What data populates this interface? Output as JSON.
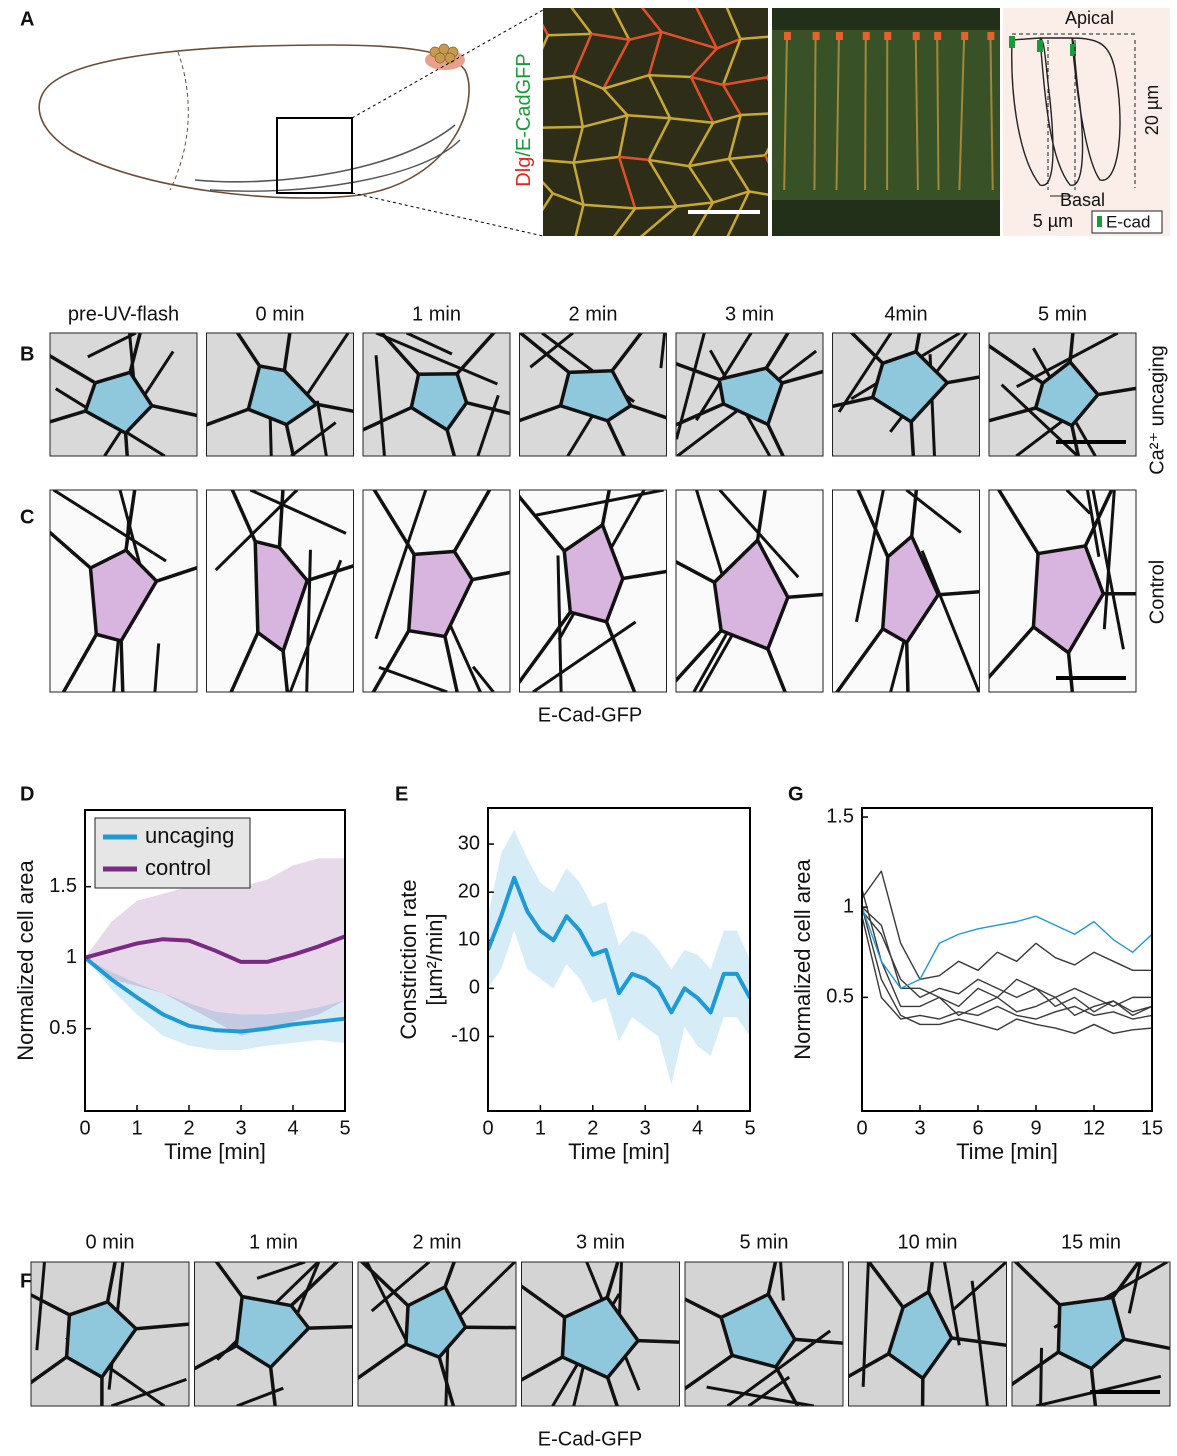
{
  "panel_labels": [
    "A",
    "B",
    "C",
    "D",
    "E",
    "G",
    "F"
  ],
  "panel_a": {
    "stain_red": "Dlg",
    "stain_green": "/E-CadGFP",
    "apical": "Apical",
    "basal": "Basal",
    "height": "20 µm",
    "width": "5 µm",
    "legend": "E-cad"
  },
  "panel_bc": {
    "times": [
      "pre-UV-flash",
      "0 min",
      "1 min",
      "2 min",
      "3 min",
      "4min",
      "5 min"
    ],
    "row_b_label": "Ca²⁺ uncaging",
    "row_c_label": "Control",
    "caption": "E-Cad-GFP"
  },
  "panel_f": {
    "times": [
      "0 min",
      "1 min",
      "2 min",
      "3 min",
      "5 min",
      "10 min",
      "15 min"
    ],
    "caption": "E-Cad-GFP"
  },
  "chart_data": [
    {
      "type": "line",
      "xlabel": "Time [min]",
      "ylabel": "Normalized cell area",
      "x": [
        0,
        0.5,
        1,
        1.5,
        2,
        2.5,
        3,
        3.5,
        4,
        4.5,
        5
      ],
      "xlim": [
        0,
        5
      ],
      "xticks": [
        0,
        1,
        2,
        3,
        4,
        5
      ],
      "ylim": [
        -0.08,
        2.04
      ],
      "yticks": [
        0.5,
        1,
        1.5
      ],
      "legend": "upper left",
      "series": [
        {
          "name": "uncaging",
          "color": "#1e9ad6",
          "values": [
            1,
            0.85,
            0.72,
            0.6,
            0.52,
            0.49,
            0.48,
            0.5,
            0.53,
            0.55,
            0.57
          ],
          "upper": [
            1,
            0.9,
            0.82,
            0.75,
            0.68,
            0.62,
            0.6,
            0.6,
            0.62,
            0.65,
            0.7
          ],
          "lower": [
            1,
            0.78,
            0.6,
            0.45,
            0.38,
            0.35,
            0.35,
            0.38,
            0.4,
            0.42,
            0.4
          ]
        },
        {
          "name": "control",
          "color": "#7b2a83",
          "values": [
            1,
            1.05,
            1.1,
            1.13,
            1.12,
            1.05,
            0.97,
            0.97,
            1.02,
            1.08,
            1.15
          ],
          "upper": [
            1,
            1.25,
            1.4,
            1.45,
            1.5,
            1.55,
            1.5,
            1.55,
            1.65,
            1.7,
            1.7
          ],
          "lower": [
            1,
            0.85,
            0.8,
            0.75,
            0.65,
            0.55,
            0.45,
            0.5,
            0.55,
            0.6,
            0.7
          ]
        }
      ]
    },
    {
      "type": "line",
      "xlabel": "Time [min]",
      "ylabel": "Constriction rate",
      "ylabel_unit": "[µm²/min]",
      "x": [
        0,
        0.25,
        0.5,
        0.75,
        1,
        1.25,
        1.5,
        1.75,
        2,
        2.25,
        2.5,
        2.75,
        3,
        3.25,
        3.5,
        3.75,
        4,
        4.25,
        4.5,
        4.75,
        5
      ],
      "xlim": [
        0,
        5
      ],
      "xticks": [
        0,
        1,
        2,
        3,
        4,
        5
      ],
      "ylim": [
        -25.5,
        37.5
      ],
      "yticks": [
        -10,
        0,
        10,
        20,
        30
      ],
      "series": [
        {
          "color": "#1e9ad6",
          "values": [
            8,
            15,
            23,
            16,
            12,
            10,
            15,
            12,
            7,
            8,
            -1,
            3,
            2,
            0,
            -5,
            0,
            -2,
            -5,
            3,
            3,
            -2
          ],
          "upper": [
            15,
            28,
            33,
            27,
            22,
            20,
            25,
            22,
            17,
            18,
            9,
            12,
            11,
            8,
            4,
            8,
            7,
            4,
            12,
            12,
            6
          ],
          "lower": [
            0,
            4,
            12,
            4,
            2,
            0,
            5,
            2,
            -3,
            -2,
            -11,
            -6,
            -8,
            -10,
            -20,
            -8,
            -12,
            -14,
            -6,
            -6,
            -10
          ]
        }
      ]
    },
    {
      "type": "line",
      "xlabel": "Time [min]",
      "ylabel": "Normalized cell area",
      "x": [
        0,
        1,
        2,
        3,
        4,
        5,
        6,
        7,
        8,
        9,
        10,
        11,
        12,
        13,
        14,
        15
      ],
      "xlim": [
        0,
        15
      ],
      "xticks": [
        0,
        3,
        6,
        9,
        12,
        15
      ],
      "ylim": [
        -0.13,
        1.55
      ],
      "yticks": [
        0.5,
        1,
        1.5
      ],
      "series": [
        {
          "color": "#3a3a3a",
          "values": [
            1.05,
            1.2,
            0.8,
            0.6,
            0.62,
            0.7,
            0.65,
            0.75,
            0.7,
            0.8,
            0.72,
            0.68,
            0.75,
            0.7,
            0.65,
            0.65
          ]
        },
        {
          "color": "#3a3a3a",
          "values": [
            1,
            0.9,
            0.55,
            0.55,
            0.5,
            0.45,
            0.55,
            0.5,
            0.6,
            0.55,
            0.5,
            0.55,
            0.5,
            0.45,
            0.5,
            0.5
          ]
        },
        {
          "color": "#3a3a3a",
          "values": [
            1.1,
            0.7,
            0.45,
            0.45,
            0.5,
            0.4,
            0.45,
            0.5,
            0.42,
            0.45,
            0.5,
            0.4,
            0.45,
            0.48,
            0.42,
            0.45
          ]
        },
        {
          "color": "#3a3a3a",
          "values": [
            0.95,
            0.5,
            0.38,
            0.4,
            0.38,
            0.42,
            0.4,
            0.45,
            0.4,
            0.38,
            0.42,
            0.45,
            0.4,
            0.42,
            0.38,
            0.4
          ]
        },
        {
          "color": "#3a3a3a",
          "values": [
            1,
            0.6,
            0.4,
            0.35,
            0.35,
            0.38,
            0.35,
            0.32,
            0.38,
            0.35,
            0.33,
            0.3,
            0.35,
            0.3,
            0.32,
            0.33
          ]
        },
        {
          "color": "#3a3a3a",
          "values": [
            0.98,
            0.85,
            0.6,
            0.5,
            0.55,
            0.52,
            0.6,
            0.55,
            0.5,
            0.55,
            0.45,
            0.5,
            0.42,
            0.48,
            0.4,
            0.45
          ]
        },
        {
          "color": "#1e9ad6",
          "values": [
            1,
            0.7,
            0.55,
            0.6,
            0.8,
            0.85,
            0.88,
            0.9,
            0.92,
            0.95,
            0.9,
            0.85,
            0.92,
            0.82,
            0.75,
            0.85
          ]
        }
      ]
    }
  ]
}
